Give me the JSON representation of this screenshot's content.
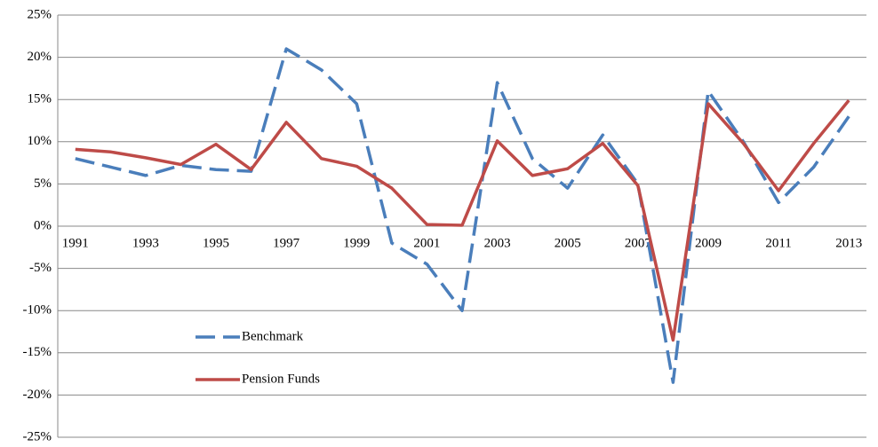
{
  "chart_data": {
    "type": "line",
    "categories": [
      "1991",
      null,
      "1993",
      null,
      "1995",
      null,
      "1997",
      null,
      "1999",
      null,
      "2001",
      null,
      "2003",
      null,
      "2005",
      null,
      "2007",
      null,
      "2009",
      null,
      "2011",
      null,
      "2013"
    ],
    "series": [
      {
        "name": "Benchmark",
        "color": "#4a7ebb",
        "style": "dashed",
        "values": [
          8,
          7,
          6,
          7.2,
          6.7,
          6.5,
          21,
          18.5,
          14.5,
          -2,
          -4.5,
          -10,
          17,
          8,
          4.5,
          10.8,
          5,
          -18.5,
          16,
          10,
          2.8,
          7,
          13
        ]
      },
      {
        "name": "Pension Funds",
        "color": "#be4b48",
        "style": "solid",
        "values": [
          9.1,
          8.8,
          8.1,
          7.3,
          9.7,
          6.7,
          12.3,
          8,
          7.1,
          4.5,
          0.2,
          0.1,
          10.1,
          6,
          6.8,
          9.8,
          4.8,
          -13.5,
          14.5,
          9.8,
          4.2,
          9.8,
          14.9
        ]
      }
    ],
    "ylim": [
      -25,
      25
    ],
    "yticks": [
      {
        "value": -25,
        "label": "-25%"
      },
      {
        "value": -20,
        "label": "-20%"
      },
      {
        "value": -15,
        "label": "-15%"
      },
      {
        "value": -10,
        "label": "-10%"
      },
      {
        "value": -5,
        "label": "-5%"
      },
      {
        "value": 0,
        "label": "0%"
      },
      {
        "value": 5,
        "label": "5%"
      },
      {
        "value": 10,
        "label": "10%"
      },
      {
        "value": 15,
        "label": "15%"
      },
      {
        "value": 20,
        "label": "20%"
      },
      {
        "value": 25,
        "label": "25%"
      }
    ],
    "grid": true,
    "legend": "lower left"
  }
}
